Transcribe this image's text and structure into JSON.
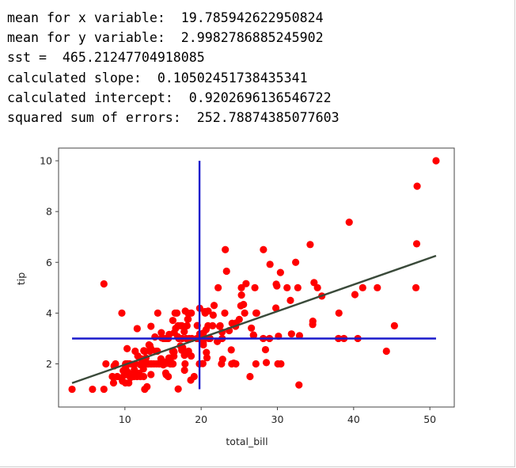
{
  "output_lines": [
    "mean for x variable:  19.785942622950824",
    "mean for y variable:  2.9982786885245902",
    "sst =  465.21247704918085",
    "calculated slope:  0.10502451738435341",
    "calculated intercept:  0.9202696136546722",
    "squared sum of errors:  252.78874385077603"
  ],
  "chart_data": {
    "type": "scatter",
    "title": "",
    "xlabel": "total_bill",
    "ylabel": "tip",
    "xlim": [
      1.3,
      53.2
    ],
    "ylim": [
      0.3,
      10.5
    ],
    "xticks": [
      10,
      20,
      30,
      40,
      50
    ],
    "yticks": [
      2,
      4,
      6,
      8,
      10
    ],
    "grid": false,
    "colors": {
      "points": "#ff0000",
      "regression_line": "#3a4a3a",
      "mean_lines": "#1a1acc",
      "axes": "#444444"
    },
    "series": [
      {
        "kind": "points",
        "points": [
          [
            3.07,
            1.0
          ],
          [
            5.75,
            1.0
          ],
          [
            7.25,
            1.0
          ],
          [
            7.25,
            5.15
          ],
          [
            7.51,
            2.0
          ],
          [
            8.35,
            1.5
          ],
          [
            8.51,
            1.25
          ],
          [
            8.52,
            1.48
          ],
          [
            8.58,
            1.92
          ],
          [
            8.77,
            2.0
          ],
          [
            9.0,
            1.5
          ],
          [
            9.55,
            1.45
          ],
          [
            9.6,
            4.0
          ],
          [
            9.68,
            1.32
          ],
          [
            9.78,
            1.73
          ],
          [
            9.94,
            1.56
          ],
          [
            10.07,
            1.25
          ],
          [
            10.07,
            1.83
          ],
          [
            10.09,
            2.0
          ],
          [
            10.27,
            1.71
          ],
          [
            10.29,
            2.6
          ],
          [
            10.33,
            1.67
          ],
          [
            10.33,
            2.0
          ],
          [
            10.34,
            1.66
          ],
          [
            10.34,
            2.0
          ],
          [
            10.51,
            1.25
          ],
          [
            10.59,
            1.61
          ],
          [
            10.63,
            2.0
          ],
          [
            10.65,
            1.5
          ],
          [
            10.77,
            1.47
          ],
          [
            11.02,
            1.98
          ],
          [
            11.17,
            1.5
          ],
          [
            11.24,
            1.76
          ],
          [
            11.35,
            2.5
          ],
          [
            11.38,
            2.0
          ],
          [
            11.59,
            1.5
          ],
          [
            11.61,
            3.39
          ],
          [
            11.69,
            2.31
          ],
          [
            11.87,
            1.63
          ],
          [
            12.02,
            1.97
          ],
          [
            12.03,
            1.5
          ],
          [
            12.16,
            2.2
          ],
          [
            12.26,
            2.0
          ],
          [
            12.43,
            1.8
          ],
          [
            12.46,
            1.5
          ],
          [
            12.48,
            2.52
          ],
          [
            12.54,
            2.5
          ],
          [
            12.6,
            1.0
          ],
          [
            12.66,
            2.5
          ],
          [
            12.69,
            2.0
          ],
          [
            12.74,
            2.01
          ],
          [
            12.76,
            2.23
          ],
          [
            12.9,
            1.1
          ],
          [
            13.0,
            2.0
          ],
          [
            13.03,
            2.0
          ],
          [
            13.13,
            2.0
          ],
          [
            13.16,
            2.75
          ],
          [
            13.27,
            2.5
          ],
          [
            13.28,
            2.72
          ],
          [
            13.37,
            2.0
          ],
          [
            13.39,
            2.61
          ],
          [
            13.42,
            1.58
          ],
          [
            13.42,
            3.48
          ],
          [
            13.51,
            2.0
          ],
          [
            13.81,
            2.0
          ],
          [
            13.94,
            3.06
          ],
          [
            14.07,
            2.5
          ],
          [
            14.15,
            2.0
          ],
          [
            14.26,
            2.5
          ],
          [
            14.31,
            4.0
          ],
          [
            14.48,
            2.0
          ],
          [
            14.52,
            2.0
          ],
          [
            14.73,
            2.2
          ],
          [
            14.78,
            3.23
          ],
          [
            14.83,
            3.02
          ],
          [
            15.01,
            2.09
          ],
          [
            15.04,
            1.96
          ],
          [
            15.06,
            3.0
          ],
          [
            15.36,
            1.64
          ],
          [
            15.38,
            3.0
          ],
          [
            15.42,
            1.57
          ],
          [
            15.48,
            2.02
          ],
          [
            15.53,
            3.0
          ],
          [
            15.69,
            1.5
          ],
          [
            15.69,
            3.0
          ],
          [
            15.77,
            2.23
          ],
          [
            15.81,
            3.16
          ],
          [
            15.95,
            2.0
          ],
          [
            15.98,
            2.03
          ],
          [
            16.0,
            2.0
          ],
          [
            16.04,
            2.24
          ],
          [
            16.21,
            2.0
          ],
          [
            16.27,
            2.5
          ],
          [
            16.29,
            3.71
          ],
          [
            16.31,
            2.0
          ],
          [
            16.4,
            2.5
          ],
          [
            16.43,
            2.3
          ],
          [
            16.45,
            2.47
          ],
          [
            16.47,
            3.23
          ],
          [
            16.58,
            4.0
          ],
          [
            16.66,
            3.4
          ],
          [
            16.82,
            4.0
          ],
          [
            16.93,
            3.07
          ],
          [
            16.97,
            3.5
          ],
          [
            16.99,
            1.01
          ],
          [
            17.07,
            3.0
          ],
          [
            17.29,
            2.71
          ],
          [
            17.31,
            3.5
          ],
          [
            17.46,
            2.54
          ],
          [
            17.47,
            3.5
          ],
          [
            17.51,
            3.0
          ],
          [
            17.59,
            2.64
          ],
          [
            17.78,
            3.27
          ],
          [
            17.81,
            2.34
          ],
          [
            17.82,
            1.75
          ],
          [
            17.89,
            2.0
          ],
          [
            17.92,
            4.08
          ],
          [
            18.04,
            3.0
          ],
          [
            18.15,
            3.5
          ],
          [
            18.24,
            3.76
          ],
          [
            18.28,
            4.0
          ],
          [
            18.29,
            3.76
          ],
          [
            18.35,
            2.5
          ],
          [
            18.43,
            3.0
          ],
          [
            18.64,
            1.36
          ],
          [
            18.69,
            2.31
          ],
          [
            18.71,
            4.0
          ],
          [
            18.78,
            3.0
          ],
          [
            19.08,
            1.5
          ],
          [
            19.44,
            3.0
          ],
          [
            19.49,
            3.51
          ],
          [
            19.65,
            3.0
          ],
          [
            19.77,
            2.0
          ],
          [
            19.81,
            4.19
          ],
          [
            19.82,
            3.18
          ],
          [
            20.08,
            3.15
          ],
          [
            20.23,
            2.01
          ],
          [
            20.27,
            2.83
          ],
          [
            20.29,
            2.75
          ],
          [
            20.29,
            3.21
          ],
          [
            20.45,
            3.0
          ],
          [
            20.49,
            4.06
          ],
          [
            20.53,
            4.0
          ],
          [
            20.65,
            3.35
          ],
          [
            20.69,
            2.45
          ],
          [
            20.76,
            2.24
          ],
          [
            20.9,
            3.5
          ],
          [
            20.92,
            4.08
          ],
          [
            21.01,
            3.0
          ],
          [
            21.16,
            3.0
          ],
          [
            21.5,
            3.5
          ],
          [
            21.58,
            3.92
          ],
          [
            21.7,
            4.3
          ],
          [
            22.12,
            2.88
          ],
          [
            22.23,
            5.0
          ],
          [
            22.42,
            3.48
          ],
          [
            22.49,
            3.5
          ],
          [
            22.67,
            2.0
          ],
          [
            22.75,
            3.25
          ],
          [
            22.76,
            3.0
          ],
          [
            22.82,
            2.18
          ],
          [
            23.1,
            4.0
          ],
          [
            23.17,
            6.5
          ],
          [
            23.33,
            5.65
          ],
          [
            23.68,
            3.31
          ],
          [
            23.95,
            2.55
          ],
          [
            24.01,
            2.0
          ],
          [
            24.06,
            3.6
          ],
          [
            24.27,
            2.03
          ],
          [
            24.52,
            3.48
          ],
          [
            24.55,
            2.0
          ],
          [
            24.59,
            3.61
          ],
          [
            25.0,
            3.75
          ],
          [
            25.21,
            4.29
          ],
          [
            25.28,
            5.0
          ],
          [
            25.29,
            4.71
          ],
          [
            25.56,
            4.34
          ],
          [
            25.71,
            4.0
          ],
          [
            25.89,
            5.16
          ],
          [
            26.41,
            1.5
          ],
          [
            26.59,
            3.41
          ],
          [
            26.86,
            3.14
          ],
          [
            26.88,
            3.12
          ],
          [
            27.05,
            5.0
          ],
          [
            27.18,
            2.0
          ],
          [
            27.2,
            4.0
          ],
          [
            27.28,
            4.0
          ],
          [
            28.15,
            3.0
          ],
          [
            28.17,
            6.5
          ],
          [
            28.44,
            2.56
          ],
          [
            28.55,
            2.05
          ],
          [
            28.97,
            3.0
          ],
          [
            29.03,
            5.92
          ],
          [
            29.8,
            4.2
          ],
          [
            29.85,
            5.14
          ],
          [
            29.93,
            5.07
          ],
          [
            30.06,
            2.0
          ],
          [
            30.14,
            3.09
          ],
          [
            30.4,
            5.6
          ],
          [
            30.46,
            2.0
          ],
          [
            31.27,
            5.0
          ],
          [
            31.71,
            4.5
          ],
          [
            31.85,
            3.18
          ],
          [
            32.4,
            6.0
          ],
          [
            32.68,
            5.0
          ],
          [
            32.83,
            1.17
          ],
          [
            32.9,
            3.11
          ],
          [
            34.3,
            6.7
          ],
          [
            34.63,
            3.55
          ],
          [
            34.65,
            3.68
          ],
          [
            34.81,
            5.2
          ],
          [
            35.26,
            5.0
          ],
          [
            35.83,
            4.67
          ],
          [
            38.01,
            3.0
          ],
          [
            38.07,
            4.0
          ],
          [
            38.73,
            3.0
          ],
          [
            39.42,
            7.58
          ],
          [
            40.17,
            4.73
          ],
          [
            40.55,
            3.0
          ],
          [
            41.19,
            5.0
          ],
          [
            43.11,
            5.0
          ],
          [
            44.3,
            2.5
          ],
          [
            45.35,
            3.5
          ],
          [
            48.17,
            5.0
          ],
          [
            48.27,
            6.73
          ],
          [
            48.33,
            9.0
          ],
          [
            50.81,
            10.0
          ]
        ]
      },
      {
        "kind": "regression_line",
        "points": [
          [
            3.07,
            1.2427
          ],
          [
            50.81,
            6.2565
          ]
        ]
      },
      {
        "kind": "mean_line",
        "points": [
          [
            19.785942622950824,
            1.0
          ],
          [
            19.785942622950824,
            10.0
          ]
        ]
      },
      {
        "kind": "mean_line",
        "points": [
          [
            3.07,
            2.9982786885245902
          ],
          [
            50.81,
            2.9982786885245902
          ]
        ]
      }
    ]
  }
}
